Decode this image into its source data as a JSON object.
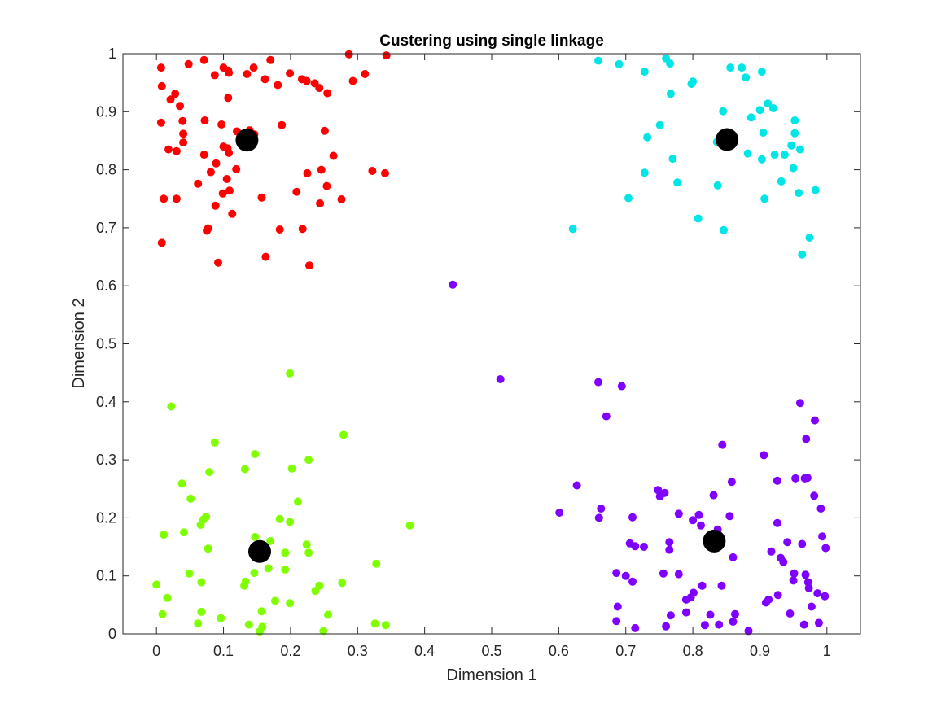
{
  "chart_data": {
    "type": "scatter",
    "title": "Custering using single linkage",
    "xlabel": "Dimension 1",
    "ylabel": "Dimension 2",
    "xlim": [
      -0.05,
      1.05
    ],
    "ylim": [
      0,
      1
    ],
    "xticks": [
      "0",
      "0.1",
      "0.2",
      "0.3",
      "0.4",
      "0.5",
      "0.6",
      "0.7",
      "0.8",
      "0.9",
      "1"
    ],
    "xtick_values": [
      0,
      0.1,
      0.2,
      0.3,
      0.4,
      0.5,
      0.6,
      0.7,
      0.8,
      0.9,
      1
    ],
    "yticks": [
      "0",
      "0.1",
      "0.2",
      "0.3",
      "0.4",
      "0.5",
      "0.6",
      "0.7",
      "0.8",
      "0.9",
      "1"
    ],
    "ytick_values": [
      0,
      0.1,
      0.2,
      0.3,
      0.4,
      0.5,
      0.6,
      0.7,
      0.8,
      0.9,
      1
    ],
    "grid": false,
    "box": true,
    "series": [
      {
        "color": "#ff0000",
        "points": [
          [
            0.007,
            0.976
          ],
          [
            0.048,
            0.982
          ],
          [
            0.071,
            0.989
          ],
          [
            0.1,
            0.976
          ],
          [
            0.107,
            0.971
          ],
          [
            0.145,
            0.976
          ],
          [
            0.17,
            0.989
          ],
          [
            0.287,
            0.999
          ],
          [
            0.343,
            0.997
          ],
          [
            0.008,
            0.944
          ],
          [
            0.028,
            0.931
          ],
          [
            0.087,
            0.963
          ],
          [
            0.108,
            0.967
          ],
          [
            0.135,
            0.965
          ],
          [
            0.162,
            0.956
          ],
          [
            0.181,
            0.946
          ],
          [
            0.199,
            0.966
          ],
          [
            0.217,
            0.956
          ],
          [
            0.224,
            0.953
          ],
          [
            0.236,
            0.949
          ],
          [
            0.243,
            0.941
          ],
          [
            0.255,
            0.932
          ],
          [
            0.293,
            0.953
          ],
          [
            0.311,
            0.965
          ],
          [
            0.035,
            0.91
          ],
          [
            0.021,
            0.921
          ],
          [
            0.007,
            0.881
          ],
          [
            0.039,
            0.884
          ],
          [
            0.072,
            0.885
          ],
          [
            0.097,
            0.878
          ],
          [
            0.107,
            0.924
          ],
          [
            0.146,
            0.861
          ],
          [
            0.139,
            0.868
          ],
          [
            0.187,
            0.877
          ],
          [
            0.251,
            0.867
          ],
          [
            0.018,
            0.835
          ],
          [
            0.03,
            0.832
          ],
          [
            0.04,
            0.847
          ],
          [
            0.04,
            0.862
          ],
          [
            0.071,
            0.826
          ],
          [
            0.081,
            0.796
          ],
          [
            0.089,
            0.811
          ],
          [
            0.1,
            0.84
          ],
          [
            0.106,
            0.837
          ],
          [
            0.108,
            0.829
          ],
          [
            0.119,
            0.801
          ],
          [
            0.105,
            0.784
          ],
          [
            0.264,
            0.824
          ],
          [
            0.011,
            0.75
          ],
          [
            0.03,
            0.75
          ],
          [
            0.062,
            0.776
          ],
          [
            0.099,
            0.759
          ],
          [
            0.109,
            0.764
          ],
          [
            0.088,
            0.738
          ],
          [
            0.113,
            0.724
          ],
          [
            0.157,
            0.752
          ],
          [
            0.209,
            0.762
          ],
          [
            0.225,
            0.794
          ],
          [
            0.246,
            0.8
          ],
          [
            0.254,
            0.772
          ],
          [
            0.276,
            0.749
          ],
          [
            0.244,
            0.742
          ],
          [
            0.322,
            0.798
          ],
          [
            0.341,
            0.794
          ],
          [
            0.077,
            0.699
          ],
          [
            0.075,
            0.695
          ],
          [
            0.184,
            0.697
          ],
          [
            0.218,
            0.698
          ],
          [
            0.008,
            0.674
          ],
          [
            0.092,
            0.64
          ],
          [
            0.163,
            0.65
          ],
          [
            0.228,
            0.635
          ],
          [
            0.12,
            0.866
          ]
        ]
      },
      {
        "color": "#00e6e6",
        "points": [
          [
            0.659,
            0.988
          ],
          [
            0.69,
            0.982
          ],
          [
            0.76,
            0.992
          ],
          [
            0.766,
            0.983
          ],
          [
            0.856,
            0.976
          ],
          [
            0.873,
            0.976
          ],
          [
            0.879,
            0.959
          ],
          [
            0.903,
            0.969
          ],
          [
            0.728,
            0.969
          ],
          [
            0.8,
            0.952
          ],
          [
            0.798,
            0.948
          ],
          [
            0.767,
            0.931
          ],
          [
            0.845,
            0.901
          ],
          [
            0.887,
            0.89
          ],
          [
            0.9,
            0.903
          ],
          [
            0.912,
            0.914
          ],
          [
            0.92,
            0.906
          ],
          [
            0.952,
            0.885
          ],
          [
            0.751,
            0.877
          ],
          [
            0.732,
            0.856
          ],
          [
            0.952,
            0.863
          ],
          [
            0.96,
            0.835
          ],
          [
            0.905,
            0.864
          ],
          [
            0.836,
            0.848
          ],
          [
            0.882,
            0.828
          ],
          [
            0.903,
            0.818
          ],
          [
            0.922,
            0.826
          ],
          [
            0.937,
            0.826
          ],
          [
            0.947,
            0.842
          ],
          [
            0.77,
            0.819
          ],
          [
            0.728,
            0.795
          ],
          [
            0.95,
            0.803
          ],
          [
            0.932,
            0.78
          ],
          [
            0.958,
            0.76
          ],
          [
            0.983,
            0.765
          ],
          [
            0.907,
            0.75
          ],
          [
            0.704,
            0.751
          ],
          [
            0.777,
            0.778
          ],
          [
            0.837,
            0.773
          ],
          [
            0.808,
            0.716
          ],
          [
            0.846,
            0.696
          ],
          [
            0.621,
            0.698
          ],
          [
            0.974,
            0.683
          ],
          [
            0.963,
            0.654
          ]
        ]
      },
      {
        "color": "#80ff00",
        "points": [
          [
            0.199,
            0.449
          ],
          [
            0.022,
            0.392
          ],
          [
            0.087,
            0.33
          ],
          [
            0.279,
            0.343
          ],
          [
            0.147,
            0.31
          ],
          [
            0.227,
            0.3
          ],
          [
            0.202,
            0.285
          ],
          [
            0.132,
            0.284
          ],
          [
            0.079,
            0.279
          ],
          [
            0.038,
            0.259
          ],
          [
            0.051,
            0.233
          ],
          [
            0.211,
            0.228
          ],
          [
            0.074,
            0.202
          ],
          [
            0.07,
            0.197
          ],
          [
            0.066,
            0.188
          ],
          [
            0.041,
            0.175
          ],
          [
            0.011,
            0.171
          ],
          [
            0.184,
            0.198
          ],
          [
            0.199,
            0.193
          ],
          [
            0.378,
            0.187
          ],
          [
            0.147,
            0.167
          ],
          [
            0.17,
            0.16
          ],
          [
            0.224,
            0.154
          ],
          [
            0.227,
            0.14
          ],
          [
            0.077,
            0.147
          ],
          [
            0.192,
            0.14
          ],
          [
            0.049,
            0.104
          ],
          [
            0.067,
            0.089
          ],
          [
            0.133,
            0.09
          ],
          [
            0.131,
            0.083
          ],
          [
            0.146,
            0.105
          ],
          [
            0.167,
            0.113
          ],
          [
            0.192,
            0.111
          ],
          [
            0.277,
            0.088
          ],
          [
            0.328,
            0.121
          ],
          [
            0.243,
            0.083
          ],
          [
            0.237,
            0.074
          ],
          [
            0.0,
            0.085
          ],
          [
            0.016,
            0.062
          ],
          [
            0.009,
            0.034
          ],
          [
            0.067,
            0.038
          ],
          [
            0.062,
            0.018
          ],
          [
            0.096,
            0.027
          ],
          [
            0.138,
            0.016
          ],
          [
            0.157,
            0.039
          ],
          [
            0.177,
            0.057
          ],
          [
            0.199,
            0.053
          ],
          [
            0.158,
            0.012
          ],
          [
            0.154,
            0.004
          ],
          [
            0.256,
            0.033
          ],
          [
            0.249,
            0.005
          ],
          [
            0.326,
            0.018
          ],
          [
            0.342,
            0.015
          ]
        ]
      },
      {
        "color": "#8000ff",
        "points": [
          [
            0.442,
            0.602
          ],
          [
            0.513,
            0.439
          ],
          [
            0.659,
            0.434
          ],
          [
            0.694,
            0.427
          ],
          [
            0.671,
            0.375
          ],
          [
            0.96,
            0.398
          ],
          [
            0.982,
            0.368
          ],
          [
            0.969,
            0.336
          ],
          [
            0.844,
            0.326
          ],
          [
            0.906,
            0.308
          ],
          [
            0.627,
            0.256
          ],
          [
            0.601,
            0.209
          ],
          [
            0.663,
            0.216
          ],
          [
            0.66,
            0.2
          ],
          [
            0.71,
            0.201
          ],
          [
            0.748,
            0.248
          ],
          [
            0.758,
            0.243
          ],
          [
            0.751,
            0.237
          ],
          [
            0.831,
            0.239
          ],
          [
            0.858,
            0.262
          ],
          [
            0.953,
            0.268
          ],
          [
            0.926,
            0.264
          ],
          [
            0.967,
            0.268
          ],
          [
            0.971,
            0.269
          ],
          [
            0.981,
            0.238
          ],
          [
            0.991,
            0.216
          ],
          [
            0.779,
            0.207
          ],
          [
            0.8,
            0.196
          ],
          [
            0.809,
            0.205
          ],
          [
            0.812,
            0.187
          ],
          [
            0.837,
            0.18
          ],
          [
            0.855,
            0.203
          ],
          [
            0.926,
            0.191
          ],
          [
            0.765,
            0.158
          ],
          [
            0.765,
            0.145
          ],
          [
            0.706,
            0.156
          ],
          [
            0.714,
            0.151
          ],
          [
            0.727,
            0.15
          ],
          [
            0.821,
            0.162
          ],
          [
            0.941,
            0.158
          ],
          [
            0.963,
            0.155
          ],
          [
            0.993,
            0.168
          ],
          [
            0.998,
            0.148
          ],
          [
            0.86,
            0.132
          ],
          [
            0.917,
            0.142
          ],
          [
            0.931,
            0.131
          ],
          [
            0.935,
            0.124
          ],
          [
            0.686,
            0.105
          ],
          [
            0.7,
            0.1
          ],
          [
            0.71,
            0.09
          ],
          [
            0.756,
            0.104
          ],
          [
            0.779,
            0.103
          ],
          [
            0.814,
            0.083
          ],
          [
            0.843,
            0.083
          ],
          [
            0.951,
            0.104
          ],
          [
            0.95,
            0.092
          ],
          [
            0.968,
            0.102
          ],
          [
            0.972,
            0.089
          ],
          [
            0.973,
            0.079
          ],
          [
            0.801,
            0.071
          ],
          [
            0.797,
            0.063
          ],
          [
            0.79,
            0.059
          ],
          [
            0.927,
            0.067
          ],
          [
            0.913,
            0.059
          ],
          [
            0.909,
            0.054
          ],
          [
            0.986,
            0.07
          ],
          [
            0.997,
            0.065
          ],
          [
            0.977,
            0.047
          ],
          [
            0.688,
            0.047
          ],
          [
            0.767,
            0.032
          ],
          [
            0.79,
            0.037
          ],
          [
            0.863,
            0.034
          ],
          [
            0.826,
            0.033
          ],
          [
            0.945,
            0.035
          ],
          [
            0.686,
            0.022
          ],
          [
            0.714,
            0.01
          ],
          [
            0.76,
            0.013
          ],
          [
            0.818,
            0.015
          ],
          [
            0.839,
            0.016
          ],
          [
            0.86,
            0.021
          ],
          [
            0.883,
            0.005
          ],
          [
            0.966,
            0.016
          ],
          [
            0.988,
            0.019
          ]
        ]
      }
    ],
    "centroids": {
      "color": "#000000",
      "points": [
        [
          0.135,
          0.851
        ],
        [
          0.851,
          0.852
        ],
        [
          0.154,
          0.142
        ],
        [
          0.832,
          0.16
        ]
      ]
    }
  }
}
